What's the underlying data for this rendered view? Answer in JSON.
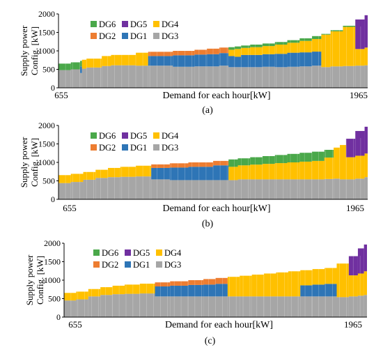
{
  "chart_data": [
    {
      "type": "bar",
      "stacked": true,
      "panel_label": "(a)",
      "xlabel": "Demand for each hour[kW]",
      "ylabel": "Supply power Config. [kW]",
      "x_range_labels": [
        "655",
        "1965"
      ],
      "ylim": [
        0,
        2000
      ],
      "yticks": [
        0,
        500,
        1000,
        1500,
        2000
      ],
      "legend_position": "top-left",
      "legend": [
        "DG6",
        "DG5",
        "DG4",
        "DG2",
        "DG1",
        "DG3"
      ],
      "colors": {
        "DG3": "#a6a6a6",
        "DG1": "#2e75b6",
        "DG2": "#ed7d31",
        "DG4": "#ffc000",
        "DG5": "#7030a0",
        "DG6": "#4aa84a"
      },
      "x": [
        0,
        4,
        7,
        7.6,
        9,
        14,
        17,
        25,
        29,
        37,
        44,
        48,
        52,
        55,
        57,
        59,
        62,
        66,
        70,
        74,
        78,
        82,
        85,
        88,
        92,
        96,
        99
      ],
      "total_demand": [
        655,
        690,
        730,
        760,
        790,
        860,
        890,
        950,
        975,
        1000,
        1030,
        1060,
        1090,
        1100,
        1120,
        1145,
        1170,
        1200,
        1240,
        1290,
        1340,
        1400,
        1460,
        1560,
        1680,
        1850,
        1965
      ],
      "series": [
        {
          "name": "DG3",
          "values": [
            480,
            500,
            400,
            520,
            550,
            590,
            610,
            600,
            600,
            570,
            580,
            580,
            600,
            560,
            560,
            560,
            560,
            570,
            560,
            570,
            580,
            600,
            560,
            580,
            590,
            600,
            610
          ]
        },
        {
          "name": "DG1",
          "values": [
            0,
            0,
            180,
            0,
            0,
            0,
            0,
            0,
            260,
            310,
            320,
            330,
            340,
            300,
            280,
            330,
            330,
            340,
            360,
            380,
            380,
            380,
            0,
            0,
            0,
            0,
            0
          ]
        },
        {
          "name": "DG2",
          "values": [
            0,
            0,
            0,
            0,
            0,
            0,
            0,
            0,
            115,
            120,
            130,
            150,
            150,
            0,
            0,
            0,
            0,
            0,
            0,
            0,
            0,
            0,
            0,
            0,
            0,
            0,
            0
          ]
        },
        {
          "name": "DG4",
          "values": [
            0,
            0,
            0,
            240,
            240,
            270,
            280,
            350,
            0,
            0,
            0,
            0,
            0,
            170,
            210,
            190,
            210,
            220,
            250,
            270,
            310,
            340,
            880,
            950,
            1060,
            450,
            480
          ]
        },
        {
          "name": "DG5",
          "values": [
            0,
            0,
            0,
            0,
            0,
            0,
            0,
            0,
            0,
            0,
            0,
            0,
            0,
            0,
            0,
            0,
            0,
            0,
            0,
            0,
            0,
            0,
            0,
            0,
            0,
            800,
            875
          ]
        },
        {
          "name": "DG6",
          "values": [
            175,
            190,
            150,
            0,
            0,
            0,
            0,
            0,
            0,
            0,
            0,
            0,
            0,
            70,
            70,
            65,
            70,
            70,
            70,
            70,
            70,
            80,
            20,
            30,
            30,
            0,
            0
          ]
        }
      ]
    },
    {
      "type": "bar",
      "stacked": true,
      "panel_label": "(b)",
      "xlabel": "Demand for each hour[kW]",
      "ylabel": "Supply power Config. [kW]",
      "x_range_labels": [
        "655",
        "1965"
      ],
      "ylim": [
        0,
        2000
      ],
      "yticks": [
        0,
        500,
        1000,
        1500,
        2000
      ],
      "legend_position": "top-left",
      "legend": [
        "DG6",
        "DG5",
        "DG4",
        "DG2",
        "DG1",
        "DG3"
      ],
      "colors": {
        "DG3": "#a6a6a6",
        "DG1": "#2e75b6",
        "DG2": "#ed7d31",
        "DG4": "#ffc000",
        "DG5": "#7030a0",
        "DG6": "#4aa84a"
      },
      "x": [
        0,
        4,
        8,
        12,
        16,
        20,
        25,
        30,
        36,
        42,
        50,
        55,
        58,
        62,
        66,
        70,
        74,
        78,
        82,
        86,
        89,
        91,
        93,
        96,
        99
      ],
      "total_demand": [
        655,
        690,
        740,
        800,
        850,
        880,
        910,
        945,
        975,
        1000,
        1040,
        1080,
        1110,
        1140,
        1170,
        1200,
        1230,
        1260,
        1290,
        1340,
        1400,
        1470,
        1640,
        1850,
        1965
      ],
      "series": [
        {
          "name": "DG3",
          "values": [
            440,
            470,
            530,
            580,
            600,
            610,
            620,
            540,
            520,
            520,
            520,
            520,
            540,
            540,
            540,
            540,
            540,
            540,
            540,
            550,
            560,
            540,
            540,
            560,
            600
          ]
        },
        {
          "name": "DG1",
          "values": [
            0,
            0,
            0,
            0,
            0,
            0,
            0,
            310,
            340,
            360,
            400,
            0,
            0,
            0,
            0,
            0,
            0,
            0,
            0,
            0,
            0,
            0,
            0,
            0,
            0
          ]
        },
        {
          "name": "DG2",
          "values": [
            0,
            0,
            0,
            0,
            0,
            0,
            0,
            95,
            115,
            120,
            120,
            0,
            0,
            0,
            0,
            0,
            0,
            0,
            0,
            0,
            0,
            0,
            0,
            0,
            0
          ]
        },
        {
          "name": "DG4",
          "values": [
            215,
            220,
            210,
            220,
            250,
            270,
            290,
            0,
            0,
            0,
            0,
            360,
            380,
            400,
            420,
            440,
            460,
            480,
            500,
            580,
            840,
            930,
            600,
            620,
            640
          ]
        },
        {
          "name": "DG5",
          "values": [
            0,
            0,
            0,
            0,
            0,
            0,
            0,
            0,
            0,
            0,
            0,
            0,
            0,
            0,
            0,
            0,
            0,
            0,
            0,
            0,
            0,
            0,
            500,
            670,
            725
          ]
        },
        {
          "name": "DG6",
          "values": [
            0,
            0,
            0,
            0,
            0,
            0,
            0,
            0,
            0,
            0,
            0,
            200,
            190,
            200,
            210,
            220,
            230,
            240,
            250,
            210,
            0,
            0,
            0,
            0,
            0
          ]
        }
      ]
    },
    {
      "type": "bar",
      "stacked": true,
      "panel_label": "(c)",
      "xlabel": "Demand for each hour[kW]",
      "ylabel": "Supply power Config. [kW]",
      "x_range_labels": [
        "655",
        "1965"
      ],
      "ylim": [
        0,
        2000
      ],
      "yticks": [
        0,
        500,
        1000,
        1500,
        2000
      ],
      "legend_position": "top-left",
      "legend": [
        "DG6",
        "DG5",
        "DG4",
        "DG2",
        "DG1",
        "DG3"
      ],
      "colors": {
        "DG3": "#a6a6a6",
        "DG1": "#2e75b6",
        "DG2": "#ed7d31",
        "DG4": "#ffc000",
        "DG5": "#7030a0",
        "DG6": "#4aa84a"
      },
      "x": [
        0,
        4,
        8,
        12,
        16,
        20,
        25,
        30,
        35,
        41,
        46,
        50,
        54,
        58,
        62,
        66,
        70,
        74,
        78,
        82,
        86,
        90,
        94,
        97,
        99
      ],
      "total_demand": [
        655,
        690,
        760,
        810,
        850,
        880,
        905,
        940,
        970,
        1000,
        1030,
        1060,
        1090,
        1120,
        1150,
        1180,
        1210,
        1240,
        1270,
        1300,
        1330,
        1450,
        1650,
        1860,
        1965
      ],
      "series": [
        {
          "name": "DG3",
          "values": [
            450,
            480,
            560,
            600,
            620,
            630,
            640,
            560,
            560,
            560,
            560,
            560,
            560,
            560,
            560,
            560,
            560,
            560,
            560,
            560,
            560,
            540,
            560,
            580,
            600
          ]
        },
        {
          "name": "DG1",
          "values": [
            0,
            0,
            0,
            0,
            0,
            0,
            0,
            270,
            290,
            310,
            320,
            340,
            0,
            0,
            0,
            0,
            0,
            0,
            300,
            320,
            340,
            0,
            0,
            0,
            0
          ]
        },
        {
          "name": "DG2",
          "values": [
            0,
            0,
            0,
            0,
            0,
            0,
            0,
            110,
            120,
            130,
            150,
            160,
            0,
            0,
            0,
            0,
            0,
            0,
            0,
            0,
            0,
            0,
            0,
            0,
            0
          ]
        },
        {
          "name": "DG4",
          "values": [
            205,
            210,
            200,
            210,
            230,
            250,
            265,
            0,
            0,
            0,
            0,
            0,
            530,
            560,
            590,
            620,
            650,
            680,
            410,
            420,
            430,
            910,
            570,
            600,
            640
          ]
        },
        {
          "name": "DG5",
          "values": [
            0,
            0,
            0,
            0,
            0,
            0,
            0,
            0,
            0,
            0,
            0,
            0,
            0,
            0,
            0,
            0,
            0,
            0,
            0,
            0,
            0,
            0,
            520,
            680,
            725
          ]
        },
        {
          "name": "DG6",
          "values": [
            0,
            0,
            0,
            0,
            0,
            0,
            0,
            0,
            0,
            0,
            0,
            0,
            0,
            0,
            0,
            0,
            0,
            0,
            0,
            0,
            0,
            0,
            0,
            0,
            0
          ]
        }
      ]
    }
  ]
}
